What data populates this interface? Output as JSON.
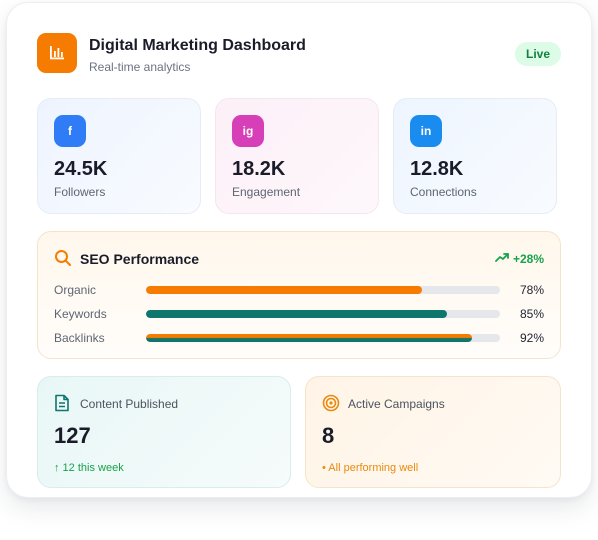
{
  "header": {
    "title": "Digital Marketing Dashboard",
    "subtitle": "Real-time analytics",
    "status_badge": "Live",
    "logo_icon": "bar-chart-icon",
    "accent": "#f57c00"
  },
  "stats": [
    {
      "network": "facebook",
      "badge": "f",
      "value": "24.5K",
      "label": "Followers",
      "color": "#2f7cf6"
    },
    {
      "network": "instagram",
      "badge": "ig",
      "value": "18.2K",
      "label": "Engagement",
      "color": "#d63fb8"
    },
    {
      "network": "linkedin",
      "badge": "in",
      "value": "12.8K",
      "label": "Connections",
      "color": "#1a8cf0"
    }
  ],
  "seo": {
    "title": "SEO Performance",
    "icon": "search-icon",
    "growth": "+28%",
    "growth_icon": "trending-up-icon",
    "bars": [
      {
        "label": "Organic",
        "value": 78,
        "display": "78%",
        "color": "#f57c00"
      },
      {
        "label": "Keywords",
        "value": 85,
        "display": "85%",
        "color": "#0f766e"
      },
      {
        "label": "Backlinks",
        "value": 92,
        "display": "92%",
        "color": "gradient"
      }
    ]
  },
  "content_published": {
    "title": "Content Published",
    "icon": "document-icon",
    "value": "127",
    "note": "↑ 12 this week"
  },
  "active_campaigns": {
    "title": "Active Campaigns",
    "icon": "target-icon",
    "value": "8",
    "note": "• All performing well"
  }
}
